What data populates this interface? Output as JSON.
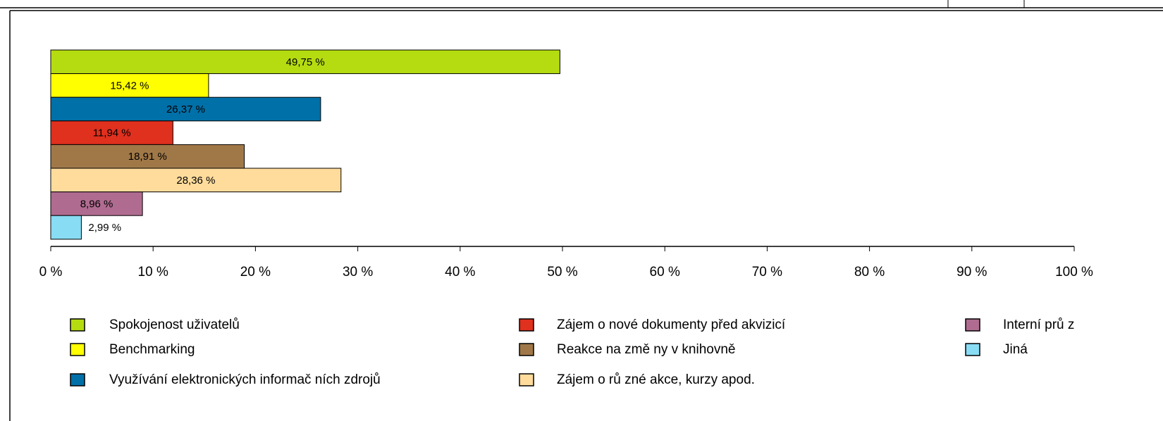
{
  "chart_data": {
    "type": "bar",
    "orientation": "horizontal",
    "categories": [
      "Spokojenost uživatelů",
      "Benchmarking",
      "Využívání elektronických informač ních zdrojů",
      "Zájem o nové dokumenty před akvizicí",
      "Reakce na změ ny v knihovně",
      "Zájem o rů zné akce, kurzy apod.",
      "Interní prů z",
      "Jiná"
    ],
    "values": [
      49.75,
      15.42,
      26.37,
      11.94,
      18.91,
      28.36,
      8.96,
      2.99
    ],
    "value_labels": [
      "49,75 %",
      "15,42 %",
      "26,37 %",
      "11,94 %",
      "18,91 %",
      "28,36 %",
      "8,96 %",
      "2,99 %"
    ],
    "colors": [
      "#b5dc10",
      "#ffff00",
      "#0070a8",
      "#e0301e",
      "#a07848",
      "#ffdc9c",
      "#b06c90",
      "#88dcf4"
    ],
    "xlim": [
      0,
      100
    ],
    "xticks": [
      {
        "value": 0,
        "label": "0 %"
      },
      {
        "value": 10,
        "label": "10 %"
      },
      {
        "value": 20,
        "label": "20 %"
      },
      {
        "value": 30,
        "label": "30 %"
      },
      {
        "value": 40,
        "label": "40 %"
      },
      {
        "value": 50,
        "label": "50 %"
      },
      {
        "value": 60,
        "label": "60 %"
      },
      {
        "value": 70,
        "label": "70 %"
      },
      {
        "value": 80,
        "label": "80 %"
      },
      {
        "value": 90,
        "label": "90 %"
      },
      {
        "value": 100,
        "label": "100 %"
      }
    ],
    "legend": "bottom"
  }
}
